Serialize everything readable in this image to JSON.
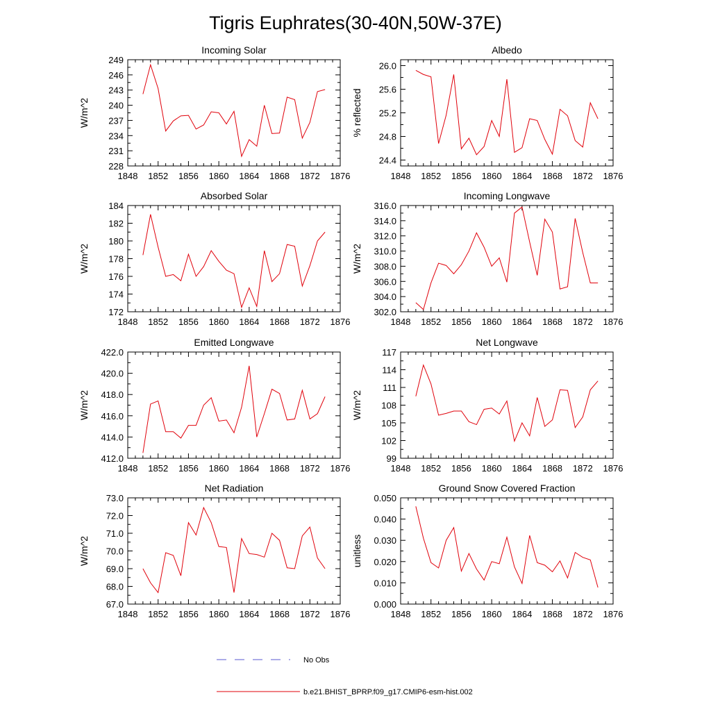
{
  "figure": {
    "title": "Tigris Euphrates(30-40N,50W-37E)",
    "legend": [
      {
        "label": "No Obs",
        "color": "#5a5ad0",
        "dash": true
      },
      {
        "label": "b.e21.BHIST_BPRP.f09_g17.CMIP6-esm-hist.002",
        "color": "#e0000a",
        "dash": false
      }
    ]
  },
  "chart_data": [
    {
      "type": "line",
      "title": "Incoming Solar",
      "ylabel": "W/m^2",
      "xlim": [
        1848,
        1876
      ],
      "ylim": [
        228,
        249
      ],
      "xticks": [
        "1848",
        "1852",
        "1856",
        "1860",
        "1864",
        "1868",
        "1872",
        "1876"
      ],
      "yticks": [
        "228",
        "231",
        "234",
        "237",
        "240",
        "243",
        "246",
        "249"
      ],
      "x": [
        1850,
        1851,
        1852,
        1853,
        1854,
        1855,
        1856,
        1857,
        1858,
        1859,
        1860,
        1861,
        1862,
        1863,
        1864,
        1865,
        1866,
        1867,
        1868,
        1869,
        1870,
        1871,
        1872,
        1873,
        1874
      ],
      "series": [
        {
          "color": "#e0000a",
          "values": [
            242.2,
            248.0,
            243.3,
            234.9,
            236.9,
            237.9,
            238.0,
            235.3,
            236.1,
            238.7,
            238.5,
            236.3,
            238.8,
            229.9,
            233.2,
            231.9,
            240.0,
            234.4,
            234.5,
            241.6,
            241.1,
            233.5,
            236.6,
            242.7,
            243.1
          ]
        }
      ]
    },
    {
      "type": "line",
      "title": "Albedo",
      "ylabel": "% reflected",
      "xlim": [
        1848,
        1876
      ],
      "ylim": [
        24.3,
        26.1
      ],
      "xticks": [
        "1848",
        "1852",
        "1856",
        "1860",
        "1864",
        "1868",
        "1872",
        "1876"
      ],
      "yticks": [
        "24.4",
        "24.8",
        "25.2",
        "25.6",
        "26.0"
      ],
      "x": [
        1850,
        1851,
        1852,
        1853,
        1854,
        1855,
        1856,
        1857,
        1858,
        1859,
        1860,
        1861,
        1862,
        1863,
        1864,
        1865,
        1866,
        1867,
        1868,
        1869,
        1870,
        1871,
        1872,
        1873,
        1874
      ],
      "series": [
        {
          "color": "#e0000a",
          "values": [
            25.92,
            25.85,
            25.81,
            24.68,
            25.16,
            25.85,
            24.59,
            24.77,
            24.49,
            24.63,
            25.07,
            24.8,
            25.77,
            24.53,
            24.61,
            25.1,
            25.07,
            24.75,
            24.5,
            25.26,
            25.15,
            24.73,
            24.62,
            25.37,
            25.1
          ]
        }
      ]
    },
    {
      "type": "line",
      "title": "Absorbed Solar",
      "ylabel": "W/m^2",
      "xlim": [
        1848,
        1876
      ],
      "ylim": [
        172,
        184
      ],
      "xticks": [
        "1848",
        "1852",
        "1856",
        "1860",
        "1864",
        "1868",
        "1872",
        "1876"
      ],
      "yticks": [
        "172",
        "174",
        "176",
        "178",
        "180",
        "182",
        "184"
      ],
      "x": [
        1850,
        1851,
        1852,
        1853,
        1854,
        1855,
        1856,
        1857,
        1858,
        1859,
        1860,
        1861,
        1862,
        1863,
        1864,
        1865,
        1866,
        1867,
        1868,
        1869,
        1870,
        1871,
        1872,
        1873,
        1874
      ],
      "series": [
        {
          "color": "#e0000a",
          "values": [
            178.4,
            183.0,
            179.3,
            176.0,
            176.2,
            175.5,
            178.5,
            176.0,
            177.1,
            178.9,
            177.7,
            176.7,
            176.3,
            172.5,
            174.7,
            172.6,
            178.9,
            175.4,
            176.3,
            179.6,
            179.4,
            174.9,
            177.2,
            180.0,
            181.0
          ]
        }
      ]
    },
    {
      "type": "line",
      "title": "Incoming Longwave",
      "ylabel": "W/m^2",
      "xlim": [
        1848,
        1876
      ],
      "ylim": [
        302,
        316
      ],
      "xticks": [
        "1848",
        "1852",
        "1856",
        "1860",
        "1864",
        "1868",
        "1872",
        "1876"
      ],
      "yticks": [
        "302.0",
        "304.0",
        "306.0",
        "308.0",
        "310.0",
        "312.0",
        "314.0",
        "316.0"
      ],
      "x": [
        1850,
        1851,
        1852,
        1853,
        1854,
        1855,
        1856,
        1857,
        1858,
        1859,
        1860,
        1861,
        1862,
        1863,
        1864,
        1865,
        1866,
        1867,
        1868,
        1869,
        1870,
        1871,
        1872,
        1873,
        1874
      ],
      "series": [
        {
          "color": "#e0000a",
          "values": [
            303.2,
            302.3,
            305.8,
            308.4,
            308.1,
            307.0,
            308.2,
            310.0,
            312.4,
            310.5,
            308.0,
            309.1,
            305.9,
            315.0,
            315.8,
            311.2,
            306.8,
            314.2,
            312.5,
            305.0,
            305.3,
            314.3,
            309.8,
            305.8,
            305.8
          ]
        }
      ]
    },
    {
      "type": "line",
      "title": "Emitted Longwave",
      "ylabel": "W/m^2",
      "xlim": [
        1848,
        1876
      ],
      "ylim": [
        412,
        422
      ],
      "xticks": [
        "1848",
        "1852",
        "1856",
        "1860",
        "1864",
        "1868",
        "1872",
        "1876"
      ],
      "yticks": [
        "412.0",
        "414.0",
        "416.0",
        "418.0",
        "420.0",
        "422.0"
      ],
      "x": [
        1850,
        1851,
        1852,
        1853,
        1854,
        1855,
        1856,
        1857,
        1858,
        1859,
        1860,
        1861,
        1862,
        1863,
        1864,
        1865,
        1866,
        1867,
        1868,
        1869,
        1870,
        1871,
        1872,
        1873,
        1874
      ],
      "series": [
        {
          "color": "#e0000a",
          "values": [
            412.5,
            417.1,
            417.4,
            414.5,
            414.5,
            413.9,
            415.1,
            415.1,
            417.0,
            417.7,
            415.5,
            415.6,
            414.4,
            416.8,
            420.7,
            414.0,
            416.2,
            418.5,
            418.1,
            415.6,
            415.7,
            418.4,
            415.7,
            416.2,
            417.8
          ]
        }
      ]
    },
    {
      "type": "line",
      "title": "Net Longwave",
      "ylabel": "W/m^2",
      "xlim": [
        1848,
        1876
      ],
      "ylim": [
        99,
        117
      ],
      "xticks": [
        "1848",
        "1852",
        "1856",
        "1860",
        "1864",
        "1868",
        "1872",
        "1876"
      ],
      "yticks": [
        "99",
        "102",
        "105",
        "108",
        "111",
        "114",
        "117"
      ],
      "x": [
        1850,
        1851,
        1852,
        1853,
        1854,
        1855,
        1856,
        1857,
        1858,
        1859,
        1860,
        1861,
        1862,
        1863,
        1864,
        1865,
        1866,
        1867,
        1868,
        1869,
        1870,
        1871,
        1872,
        1873,
        1874
      ],
      "series": [
        {
          "color": "#e0000a",
          "values": [
            109.5,
            114.8,
            111.6,
            106.3,
            106.6,
            107.0,
            107.0,
            105.2,
            104.7,
            107.3,
            107.5,
            106.5,
            108.7,
            101.9,
            105.0,
            102.8,
            109.3,
            104.4,
            105.5,
            110.6,
            110.5,
            104.2,
            106.0,
            110.6,
            112.1
          ]
        }
      ]
    },
    {
      "type": "line",
      "title": "Net Radiation",
      "ylabel": "W/m^2",
      "xlim": [
        1848,
        1876
      ],
      "ylim": [
        67,
        73
      ],
      "xticks": [
        "1848",
        "1852",
        "1856",
        "1860",
        "1864",
        "1868",
        "1872",
        "1876"
      ],
      "yticks": [
        "67.0",
        "68.0",
        "69.0",
        "70.0",
        "71.0",
        "72.0",
        "73.0"
      ],
      "x": [
        1850,
        1851,
        1852,
        1853,
        1854,
        1855,
        1856,
        1857,
        1858,
        1859,
        1860,
        1861,
        1862,
        1863,
        1864,
        1865,
        1866,
        1867,
        1868,
        1869,
        1870,
        1871,
        1872,
        1873,
        1874
      ],
      "series": [
        {
          "color": "#e0000a",
          "values": [
            69.0,
            68.2,
            67.65,
            69.9,
            69.75,
            68.6,
            71.6,
            70.9,
            72.45,
            71.6,
            70.25,
            70.2,
            67.65,
            70.7,
            69.85,
            69.8,
            69.65,
            71.0,
            70.6,
            69.05,
            69.0,
            70.85,
            71.35,
            69.6,
            69.0
          ]
        }
      ]
    },
    {
      "type": "line",
      "title": "Ground Snow Covered Fraction",
      "ylabel": "unitless",
      "xlim": [
        1848,
        1876
      ],
      "ylim": [
        0,
        0.05
      ],
      "xticks": [
        "1848",
        "1852",
        "1856",
        "1860",
        "1864",
        "1868",
        "1872",
        "1876"
      ],
      "yticks": [
        "0.000",
        "0.010",
        "0.020",
        "0.030",
        "0.040",
        "0.050"
      ],
      "x": [
        1850,
        1851,
        1852,
        1853,
        1854,
        1855,
        1856,
        1857,
        1858,
        1859,
        1860,
        1861,
        1862,
        1863,
        1864,
        1865,
        1866,
        1867,
        1868,
        1869,
        1870,
        1871,
        1872,
        1873,
        1874
      ],
      "series": [
        {
          "color": "#e0000a",
          "values": [
            0.046,
            0.031,
            0.0195,
            0.017,
            0.03,
            0.036,
            0.0155,
            0.0238,
            0.0165,
            0.0113,
            0.02,
            0.019,
            0.0315,
            0.0175,
            0.0097,
            0.0323,
            0.0195,
            0.0183,
            0.0152,
            0.0203,
            0.0123,
            0.0243,
            0.022,
            0.0208,
            0.0078
          ]
        }
      ]
    }
  ]
}
